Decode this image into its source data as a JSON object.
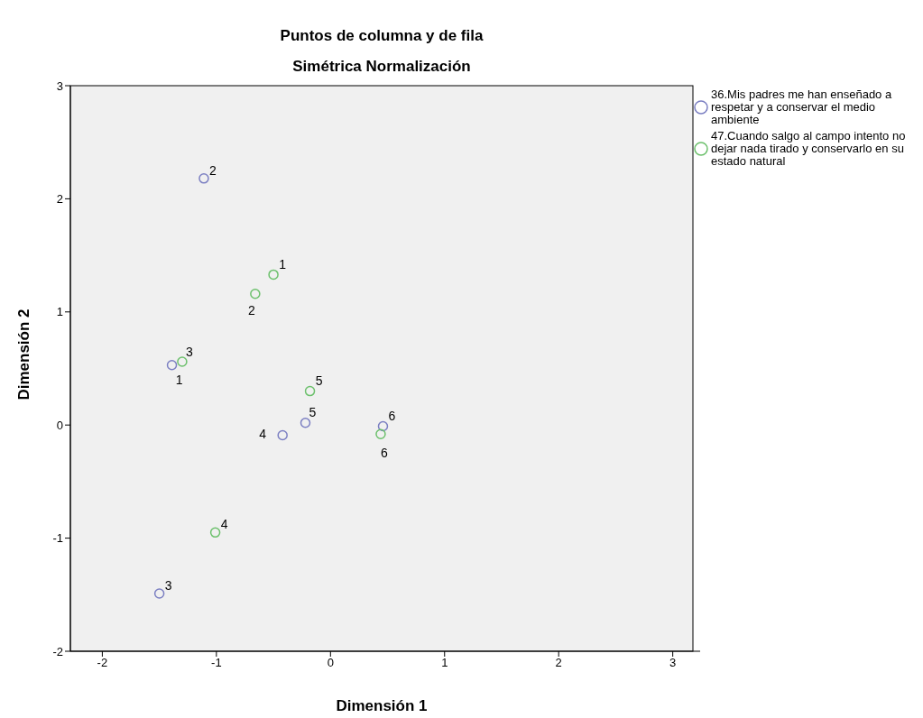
{
  "chart_data": {
    "type": "scatter",
    "title": "Puntos de columna y de fila",
    "subtitle": "Simétrica Normalización",
    "xlabel": "Dimensión 1",
    "ylabel": "Dimensión 2",
    "xlim": [
      -2.28,
      3.24
    ],
    "xticks": [
      -2,
      -1,
      0,
      1,
      2,
      3
    ],
    "ylim": [
      -2,
      3
    ],
    "yticks": [
      -2,
      -1,
      0,
      1,
      2,
      3
    ],
    "grid": false,
    "legend": "top right",
    "marker": "circle",
    "series": [
      {
        "name": "36.Mis padres me han enseñado a respetar y a conservar el medio ambiente",
        "color": "#7b7fc2",
        "x": [
          -1.39,
          -1.11,
          -1.5,
          -0.42,
          -0.22,
          0.46
        ],
        "values": [
          0.53,
          2.18,
          -1.49,
          -0.09,
          0.02,
          -0.01
        ]
      },
      {
        "name": "47.Cuando salgo al campo intento no dejar nada tirado y conservarlo en su estado natural",
        "color": "#6cc06c",
        "x": [
          -0.5,
          -0.66,
          -1.3,
          -1.01,
          -0.18,
          0.44
        ],
        "values": [
          1.33,
          1.16,
          0.56,
          -0.95,
          0.3,
          -0.08
        ]
      }
    ],
    "annotations": [
      {
        "text": "1",
        "x": -1.39,
        "y": 0.53
      },
      {
        "text": "2",
        "x": -1.11,
        "y": 2.18
      },
      {
        "text": "3",
        "x": -1.5,
        "y": -1.49
      },
      {
        "text": "4",
        "x": -0.42,
        "y": -0.09
      },
      {
        "text": "5",
        "x": -0.22,
        "y": 0.02
      },
      {
        "text": "6",
        "x": 0.46,
        "y": -0.01
      },
      {
        "text": "1",
        "x": -0.5,
        "y": 1.33
      },
      {
        "text": "2",
        "x": -0.66,
        "y": 1.16
      },
      {
        "text": "3",
        "x": -1.3,
        "y": 0.56
      },
      {
        "text": "4",
        "x": -1.01,
        "y": -0.95
      },
      {
        "text": "5",
        "x": -0.18,
        "y": 0.3
      },
      {
        "text": "6",
        "x": 0.44,
        "y": -0.08
      }
    ]
  }
}
